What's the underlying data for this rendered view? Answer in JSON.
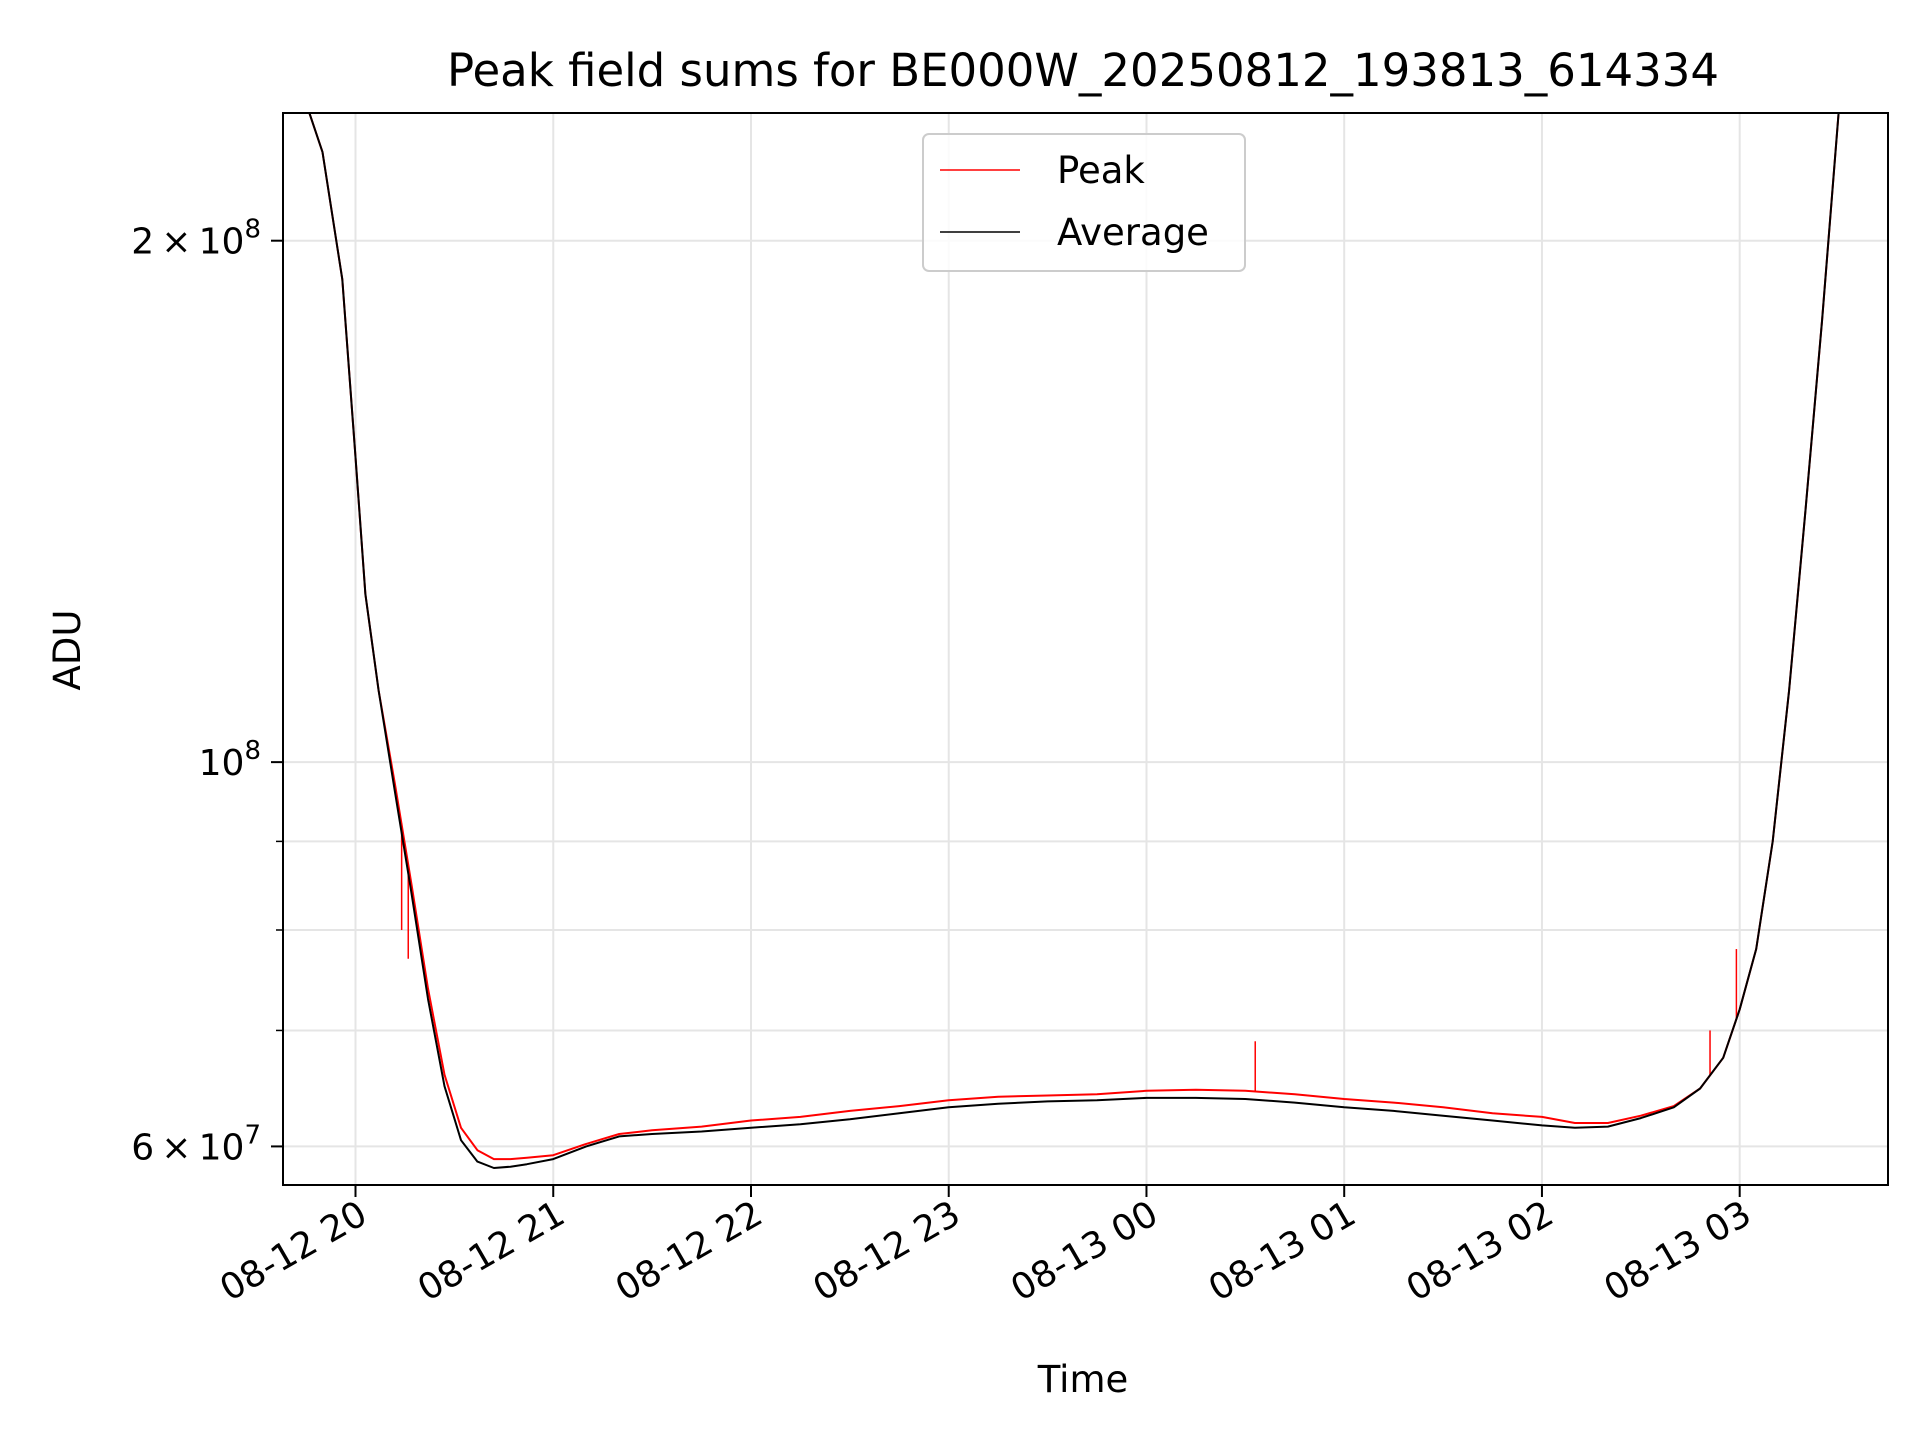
{
  "chart_data": {
    "type": "line",
    "title": "Peak field sums for BE000W_20250812_193813_614334",
    "xlabel": "Time",
    "ylabel": "ADU",
    "yscale": "log",
    "ylim": [
      57000000,
      237000000
    ],
    "xlim": [
      "2025-08-12 19:38",
      "2025-08-13 03:45"
    ],
    "grid": true,
    "legend_position": "top-center",
    "xticks": [
      {
        "time": "2025-08-12 20:00",
        "label": "08-12 20"
      },
      {
        "time": "2025-08-12 21:00",
        "label": "08-12 21"
      },
      {
        "time": "2025-08-12 22:00",
        "label": "08-12 22"
      },
      {
        "time": "2025-08-12 23:00",
        "label": "08-12 23"
      },
      {
        "time": "2025-08-13 00:00",
        "label": "08-13 00"
      },
      {
        "time": "2025-08-13 01:00",
        "label": "08-13 01"
      },
      {
        "time": "2025-08-13 02:00",
        "label": "08-13 02"
      },
      {
        "time": "2025-08-13 03:00",
        "label": "08-13 03"
      }
    ],
    "yticks_major": [
      {
        "value": 60000000,
        "label_mantissa": "6",
        "label_times": "×",
        "label_base": "10",
        "label_exp": "7"
      },
      {
        "value": 100000000,
        "label_mantissa": "",
        "label_times": "",
        "label_base": "10",
        "label_exp": "8"
      },
      {
        "value": 200000000,
        "label_mantissa": "2",
        "label_times": "×",
        "label_base": "10",
        "label_exp": "8"
      }
    ],
    "yticks_minor": [
      70000000,
      80000000,
      90000000
    ],
    "series": [
      {
        "name": "Peak",
        "color": "#ff0000",
        "x": [
          "2025-08-12 19:38",
          "2025-08-12 19:46",
          "2025-08-12 19:50",
          "2025-08-12 19:56",
          "2025-08-12 20:00",
          "2025-08-12 20:03",
          "2025-08-12 20:07",
          "2025-08-12 20:12",
          "2025-08-12 20:17",
          "2025-08-12 20:22",
          "2025-08-12 20:27",
          "2025-08-12 20:32",
          "2025-08-12 20:37",
          "2025-08-12 20:42",
          "2025-08-12 20:47",
          "2025-08-12 20:52",
          "2025-08-12 21:00",
          "2025-08-12 21:10",
          "2025-08-12 21:20",
          "2025-08-12 21:30",
          "2025-08-12 21:45",
          "2025-08-12 22:00",
          "2025-08-12 22:15",
          "2025-08-12 22:30",
          "2025-08-12 22:45",
          "2025-08-12 23:00",
          "2025-08-12 23:15",
          "2025-08-12 23:30",
          "2025-08-12 23:45",
          "2025-08-13 00:00",
          "2025-08-13 00:15",
          "2025-08-13 00:30",
          "2025-08-13 00:45",
          "2025-08-13 01:00",
          "2025-08-13 01:15",
          "2025-08-13 01:30",
          "2025-08-13 01:45",
          "2025-08-13 02:00",
          "2025-08-13 02:10",
          "2025-08-13 02:20",
          "2025-08-13 02:30",
          "2025-08-13 02:40",
          "2025-08-13 02:48",
          "2025-08-13 02:55",
          "2025-08-13 03:00",
          "2025-08-13 03:05",
          "2025-08-13 03:10",
          "2025-08-13 03:15",
          "2025-08-13 03:20",
          "2025-08-13 03:25",
          "2025-08-13 03:30",
          "2025-08-13 03:45"
        ],
        "y": [
          237000000,
          237000000,
          225000000,
          190000000,
          150000000,
          125000000,
          110000000,
          97000000,
          85000000,
          74000000,
          66000000,
          61500000,
          59700000,
          59000000,
          59000000,
          59100000,
          59300000,
          60200000,
          61000000,
          61300000,
          61600000,
          62100000,
          62400000,
          62900000,
          63300000,
          63800000,
          64100000,
          64200000,
          64300000,
          64600000,
          64700000,
          64600000,
          64300000,
          63900000,
          63600000,
          63200000,
          62700000,
          62400000,
          61900000,
          61900000,
          62500000,
          63300000,
          64800000,
          67500000,
          72000000,
          78000000,
          90000000,
          110000000,
          140000000,
          180000000,
          237000000,
          237000000
        ],
        "spikes": [
          {
            "x": "2025-08-13 00:33",
            "y": 69000000
          },
          {
            "x": "2025-08-12 20:14",
            "y": 80000000
          },
          {
            "x": "2025-08-12 20:16",
            "y": 77000000
          },
          {
            "x": "2025-08-13 02:51",
            "y": 70000000
          },
          {
            "x": "2025-08-13 02:59",
            "y": 78000000
          }
        ]
      },
      {
        "name": "Average",
        "color": "#000000",
        "x": [
          "2025-08-12 19:38",
          "2025-08-12 19:46",
          "2025-08-12 19:50",
          "2025-08-12 19:56",
          "2025-08-12 20:00",
          "2025-08-12 20:03",
          "2025-08-12 20:07",
          "2025-08-12 20:12",
          "2025-08-12 20:17",
          "2025-08-12 20:22",
          "2025-08-12 20:27",
          "2025-08-12 20:32",
          "2025-08-12 20:37",
          "2025-08-12 20:42",
          "2025-08-12 20:47",
          "2025-08-12 20:52",
          "2025-08-12 21:00",
          "2025-08-12 21:10",
          "2025-08-12 21:20",
          "2025-08-12 21:30",
          "2025-08-12 21:45",
          "2025-08-12 22:00",
          "2025-08-12 22:15",
          "2025-08-12 22:30",
          "2025-08-12 22:45",
          "2025-08-12 23:00",
          "2025-08-12 23:15",
          "2025-08-12 23:30",
          "2025-08-12 23:45",
          "2025-08-13 00:00",
          "2025-08-13 00:15",
          "2025-08-13 00:30",
          "2025-08-13 00:45",
          "2025-08-13 01:00",
          "2025-08-13 01:15",
          "2025-08-13 01:30",
          "2025-08-13 01:45",
          "2025-08-13 02:00",
          "2025-08-13 02:10",
          "2025-08-13 02:20",
          "2025-08-13 02:30",
          "2025-08-13 02:40",
          "2025-08-13 02:48",
          "2025-08-13 02:55",
          "2025-08-13 03:00",
          "2025-08-13 03:05",
          "2025-08-13 03:10",
          "2025-08-13 03:15",
          "2025-08-13 03:20",
          "2025-08-13 03:25",
          "2025-08-13 03:30",
          "2025-08-13 03:45"
        ],
        "y": [
          237000000,
          237000000,
          225000000,
          190000000,
          150000000,
          125000000,
          110000000,
          96000000,
          84000000,
          73000000,
          65000000,
          60500000,
          58800000,
          58300000,
          58400000,
          58600000,
          59000000,
          60000000,
          60800000,
          61000000,
          61200000,
          61500000,
          61800000,
          62200000,
          62700000,
          63200000,
          63500000,
          63700000,
          63800000,
          64000000,
          64000000,
          63900000,
          63600000,
          63200000,
          62900000,
          62500000,
          62100000,
          61700000,
          61500000,
          61600000,
          62300000,
          63200000,
          64800000,
          67500000,
          72000000,
          78000000,
          90000000,
          110000000,
          140000000,
          180000000,
          237000000,
          237000000
        ]
      }
    ]
  }
}
